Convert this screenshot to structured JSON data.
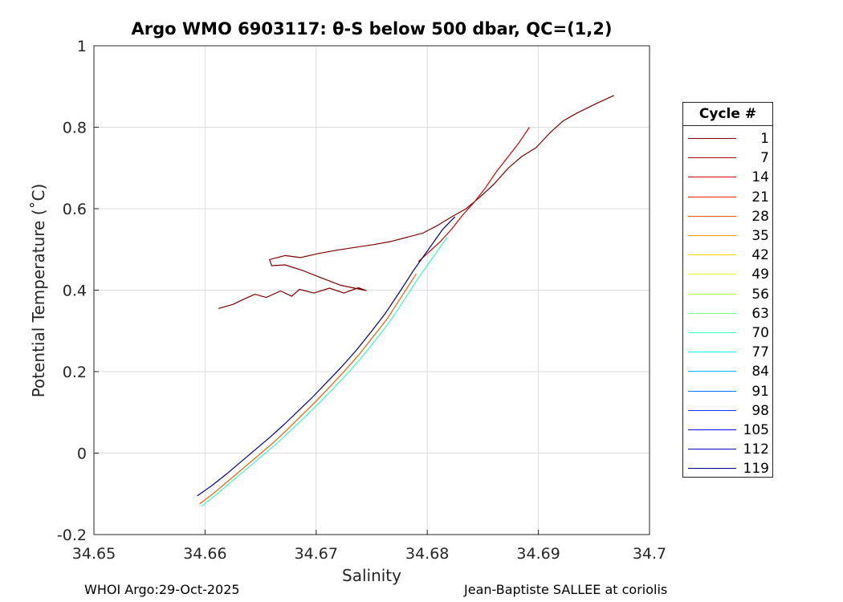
{
  "chart_data": {
    "type": "line",
    "title": "Argo WMO 6903117: θ-S below 500 dbar,  QC=(1,2)",
    "xlabel": "Salinity",
    "ylabel": "Potential Temperature (˚C)",
    "xlim": [
      34.65,
      34.7
    ],
    "ylim": [
      -0.2,
      1.0
    ],
    "xticks": [
      34.65,
      34.66,
      34.67,
      34.68,
      34.69,
      34.7
    ],
    "xtick_labels": [
      "34.65",
      "34.66",
      "34.67",
      "34.68",
      "34.69",
      "34.7"
    ],
    "yticks": [
      -0.2,
      0,
      0.2,
      0.4,
      0.6,
      0.8,
      1.0
    ],
    "ytick_labels": [
      "-0.2",
      "0",
      "0.2",
      "0.4",
      "0.6",
      "0.8",
      "1"
    ],
    "grid": true,
    "legend_position": "right",
    "legend": {
      "title": "Cycle #",
      "entries": [
        "1",
        "7",
        "14",
        "21",
        "28",
        "35",
        "42",
        "49",
        "56",
        "63",
        "70",
        "77",
        "84",
        "91",
        "98",
        "105",
        "112",
        "119"
      ],
      "colors": [
        "#800000",
        "#a30000",
        "#d60000",
        "#ff1f00",
        "#ff5a00",
        "#ff9700",
        "#ffd400",
        "#ecff0a",
        "#b0ff47",
        "#73ff84",
        "#36ffc1",
        "#00f6ff",
        "#00b6ff",
        "#0077ff",
        "#0037ff",
        "#0000ff",
        "#0000c2",
        "#00008f"
      ]
    },
    "series": [
      {
        "name": "1",
        "color": "#800000",
        "x": [
          34.6612,
          34.6625,
          34.6635,
          34.6645,
          34.6655,
          34.6668,
          34.6678,
          34.6685,
          34.6698,
          34.6712,
          34.6725,
          34.6738,
          34.6745,
          34.6722,
          34.6705,
          34.6688,
          34.6672,
          34.666,
          34.6658,
          34.6672,
          34.6686,
          34.6702,
          34.6718,
          34.6735,
          34.6752,
          34.6768,
          34.6782,
          34.6796,
          34.681,
          34.6822,
          34.6835,
          34.6848,
          34.686,
          34.6873,
          34.6885,
          34.6898,
          34.691,
          34.6922,
          34.6935,
          34.6952,
          34.6968
        ],
        "y": [
          0.355,
          0.365,
          0.378,
          0.39,
          0.382,
          0.398,
          0.385,
          0.402,
          0.393,
          0.405,
          0.393,
          0.406,
          0.399,
          0.412,
          0.43,
          0.448,
          0.462,
          0.46,
          0.475,
          0.485,
          0.48,
          0.49,
          0.498,
          0.505,
          0.512,
          0.52,
          0.53,
          0.54,
          0.56,
          0.58,
          0.6,
          0.63,
          0.66,
          0.7,
          0.728,
          0.75,
          0.785,
          0.815,
          0.835,
          0.858,
          0.878
        ]
      },
      {
        "name": "14",
        "color": "#d60000",
        "x": [
          34.6792,
          34.6802,
          34.6812,
          34.6822,
          34.6832,
          34.6842,
          34.6852,
          34.6862,
          34.6872,
          34.6882,
          34.6892
        ],
        "y": [
          0.47,
          0.495,
          0.52,
          0.55,
          0.585,
          0.615,
          0.65,
          0.69,
          0.725,
          0.76,
          0.8
        ]
      },
      {
        "name": "28",
        "color": "#ff5a00",
        "x": [
          34.6595,
          34.6608,
          34.6621,
          34.6634,
          34.6647,
          34.666,
          34.6673,
          34.6686,
          34.6699,
          34.6712,
          34.6725,
          34.6738,
          34.6751,
          34.6764,
          34.6777,
          34.679
        ],
        "y": [
          -0.125,
          -0.098,
          -0.068,
          -0.038,
          -0.008,
          0.022,
          0.055,
          0.09,
          0.125,
          0.162,
          0.2,
          0.24,
          0.285,
          0.33,
          0.385,
          0.44
        ]
      },
      {
        "name": "70",
        "color": "#36ffc1",
        "x": [
          34.6597,
          34.661,
          34.6623,
          34.6636,
          34.6649,
          34.6662,
          34.6675,
          34.6688,
          34.6701,
          34.6714,
          34.6727,
          34.674,
          34.6753,
          34.6766,
          34.6779,
          34.6792,
          34.6805,
          34.6818
        ],
        "y": [
          -0.13,
          -0.102,
          -0.072,
          -0.042,
          -0.012,
          0.018,
          0.05,
          0.084,
          0.118,
          0.155,
          0.192,
          0.232,
          0.276,
          0.322,
          0.375,
          0.43,
          0.48,
          0.53
        ]
      },
      {
        "name": "119",
        "color": "#00008f",
        "x": [
          34.6593,
          34.6606,
          34.6619,
          34.6632,
          34.6645,
          34.6658,
          34.6671,
          34.6684,
          34.6697,
          34.671,
          34.6723,
          34.6736,
          34.6749,
          34.6762,
          34.6775,
          34.6788,
          34.6801,
          34.6814,
          34.6825
        ],
        "y": [
          -0.105,
          -0.08,
          -0.052,
          -0.022,
          0.008,
          0.038,
          0.07,
          0.104,
          0.138,
          0.175,
          0.212,
          0.252,
          0.296,
          0.342,
          0.395,
          0.45,
          0.5,
          0.55,
          0.58
        ]
      }
    ]
  },
  "footer": {
    "left": "WHOI Argo:29-Oct-2025",
    "right": "Jean-Baptiste SALLEE at coriolis"
  }
}
